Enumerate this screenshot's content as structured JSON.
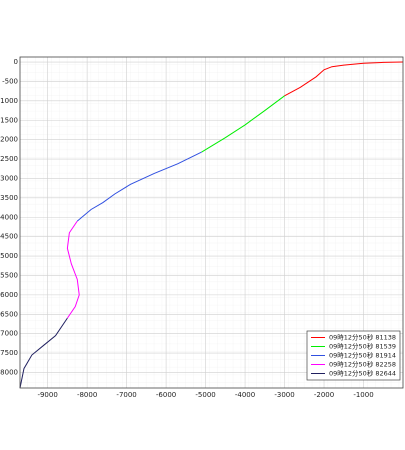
{
  "chart_data": {
    "type": "line",
    "xlim": [
      -9700,
      0
    ],
    "ylim": [
      -8400,
      130
    ],
    "xticks": [
      -9000,
      -8000,
      -7000,
      -6000,
      -5000,
      -4000,
      -3000,
      -2000,
      -1000
    ],
    "yticks": [
      0,
      -500,
      -1000,
      -1500,
      -2000,
      -2500,
      -3000,
      -3500,
      -4000,
      -4500,
      -5000,
      -5500,
      -6000,
      -6500,
      -7000,
      -7500,
      -8000
    ],
    "grid": true,
    "legend": "lower right",
    "series": [
      {
        "name": "09時12分50秒 81138",
        "color": "#ff0000",
        "x": [
          -3000,
          -2600,
          -2200,
          -2000,
          -1800,
          -1500,
          -1000,
          -500,
          0
        ],
        "values": [
          -870,
          -650,
          -380,
          -200,
          -120,
          -80,
          -30,
          -10,
          0
        ]
      },
      {
        "name": "09時12分50秒 81539",
        "color": "#00ee00",
        "x": [
          -5100,
          -4500,
          -4000,
          -3500,
          -3000
        ],
        "values": [
          -2320,
          -1950,
          -1620,
          -1250,
          -870
        ]
      },
      {
        "name": "09時12分50秒 81914",
        "color": "#3050e0",
        "x": [
          -5100,
          -5700,
          -6300,
          -6900,
          -7300,
          -7600,
          -7900,
          -8250
        ],
        "values": [
          -2320,
          -2620,
          -2870,
          -3150,
          -3400,
          -3620,
          -3800,
          -4100
        ]
      },
      {
        "name": "09時12分50秒 82258",
        "color": "#ff00ff",
        "x": [
          -8250,
          -8450,
          -8500,
          -8400,
          -8250,
          -8200,
          -8300,
          -8500
        ],
        "values": [
          -4100,
          -4400,
          -4800,
          -5200,
          -5600,
          -6000,
          -6300,
          -6600
        ]
      },
      {
        "name": "09時12分50秒 82644",
        "color": "#202060",
        "x": [
          -8500,
          -8800,
          -9100,
          -9400,
          -9600,
          -9700
        ],
        "values": [
          -6600,
          -7050,
          -7300,
          -7550,
          -7900,
          -8400
        ]
      }
    ]
  }
}
